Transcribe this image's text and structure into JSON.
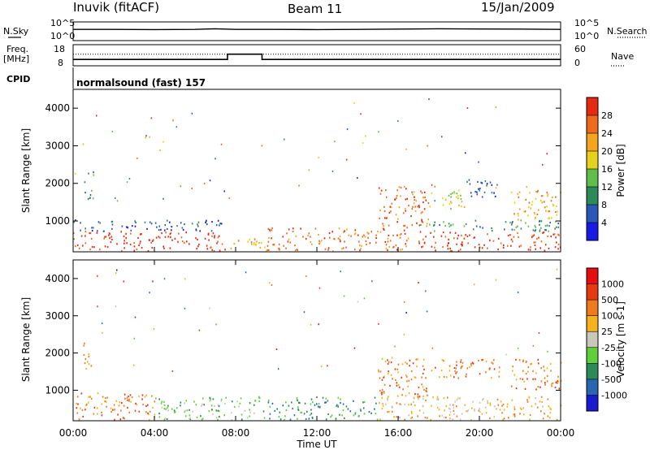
{
  "header": {
    "station": "Inuvik (fitACF)",
    "beam": "Beam 11",
    "date": "15/Jan/2009"
  },
  "nsky_panel": {
    "left_label": "N.Sky",
    "right_label": "N.Search",
    "left_ticks": [
      "10^5",
      "10^0"
    ],
    "right_ticks": [
      "10^5",
      "10^0"
    ]
  },
  "freq_panel": {
    "left_label_1": "Freq.",
    "left_label_2": "[MHz]",
    "cpid_label": "CPID",
    "right_label": "Nave",
    "left_ticks": [
      "18",
      "8"
    ],
    "right_ticks": [
      "60",
      "0"
    ]
  },
  "cpid_text": "normalsound (fast) 157",
  "xlabel": "Time UT",
  "x_ticks": [
    "00:00",
    "04:00",
    "08:00",
    "12:00",
    "16:00",
    "20:00",
    "00:00"
  ],
  "colors": {
    "power": [
      "#1a1ae6",
      "#2b58b8",
      "#2f8a5a",
      "#5fbf4a",
      "#e6d21e",
      "#f5a51e",
      "#f06a1e",
      "#e62a12"
    ],
    "velocity": [
      "#1a1ad0",
      "#2a66b0",
      "#2f8a5a",
      "#5fcf3a",
      "#c8c8b8",
      "#f5b21e",
      "#f07a1e",
      "#e63a12",
      "#e60e0e"
    ]
  },
  "chart_data": [
    {
      "type": "line",
      "title": "N.Sky / N.Search",
      "x_range": [
        "00:00",
        "24:00"
      ],
      "series": [
        {
          "name": "N.Sky",
          "style": "solid",
          "x": [
            0,
            2,
            4,
            6,
            7,
            8,
            10,
            12,
            14,
            16,
            18,
            20,
            22,
            24
          ],
          "values": [
            1000,
            1000,
            900,
            1000,
            1500,
            1000,
            1000,
            900,
            1000,
            1200,
            1500,
            1300,
            1200,
            1000
          ]
        },
        {
          "name": "N.Search",
          "style": "dotted",
          "x": [
            0,
            24
          ],
          "values": [
            1,
            1
          ]
        }
      ],
      "ylim": [
        1,
        100000
      ]
    },
    {
      "type": "line",
      "title": "Freq. / Nave",
      "x_range": [
        "00:00",
        "24:00"
      ],
      "series": [
        {
          "name": "Freq. [MHz]",
          "style": "solid",
          "x": [
            0,
            7.6,
            7.6,
            9.3,
            9.3,
            24
          ],
          "values": [
            11,
            11,
            13.5,
            13.5,
            11,
            11
          ]
        },
        {
          "name": "Nave",
          "style": "dotted",
          "x": [
            0,
            24
          ],
          "values": [
            33,
            33
          ]
        }
      ],
      "left_ylim": [
        8,
        18
      ],
      "right_ylim": [
        0,
        60
      ]
    },
    {
      "type": "heatmap",
      "title": "Power",
      "ylabel": "Slant Range [km]",
      "yticks": [
        1000,
        2000,
        3000,
        4000
      ],
      "ylim": [
        180,
        4500
      ],
      "colorbar_label": "Power [dB]",
      "colorbar_ticks": [
        "4",
        "8",
        "12",
        "16",
        "20",
        "24",
        "28"
      ],
      "regions": [
        {
          "t": [
            0.0,
            7.5
          ],
          "r": [
            180,
            700
          ],
          "level": 7
        },
        {
          "t": [
            0.0,
            7.5
          ],
          "r": [
            700,
            1000
          ],
          "level": 1
        },
        {
          "t": [
            7.5,
            9.5
          ],
          "r": [
            180,
            500
          ],
          "level": 5
        },
        {
          "t": [
            9.5,
            16.5
          ],
          "r": [
            180,
            800
          ],
          "level": 6
        },
        {
          "t": [
            15.0,
            17.5
          ],
          "r": [
            800,
            1900
          ],
          "level": 6
        },
        {
          "t": [
            17.5,
            19.3
          ],
          "r": [
            1300,
            1800
          ],
          "level": 4
        },
        {
          "t": [
            17.0,
            24.0
          ],
          "r": [
            180,
            700
          ],
          "level": 7
        },
        {
          "t": [
            17.0,
            24.0
          ],
          "r": [
            700,
            1000
          ],
          "level": 2
        },
        {
          "t": [
            19.3,
            21.0
          ],
          "r": [
            1600,
            2100
          ],
          "level": 1
        },
        {
          "t": [
            21.5,
            24.0
          ],
          "r": [
            1000,
            1800
          ],
          "level": 5
        },
        {
          "t": [
            0.5,
            1.0
          ],
          "r": [
            1500,
            2300
          ],
          "level": 2
        }
      ]
    },
    {
      "type": "heatmap",
      "title": "Velocity",
      "ylabel": "Slant Range [km]",
      "yticks": [
        1000,
        2000,
        3000,
        4000
      ],
      "ylim": [
        180,
        4500
      ],
      "colorbar_label": "Velocity [m s-1]",
      "colorbar_ticks": [
        "1000",
        "500",
        "100",
        "25",
        "-25",
        "-100",
        "-500",
        "-1000"
      ],
      "regions": [
        {
          "t": [
            0.0,
            4.0
          ],
          "r": [
            180,
            900
          ],
          "level": 6
        },
        {
          "t": [
            4.0,
            9.5
          ],
          "r": [
            180,
            800
          ],
          "level": 3
        },
        {
          "t": [
            9.5,
            15.0
          ],
          "r": [
            180,
            800
          ],
          "level": 2
        },
        {
          "t": [
            15.0,
            17.5
          ],
          "r": [
            800,
            1900
          ],
          "level": 6
        },
        {
          "t": [
            17.5,
            21.0
          ],
          "r": [
            1300,
            1800
          ],
          "level": 6
        },
        {
          "t": [
            15.0,
            24.0
          ],
          "r": [
            180,
            800
          ],
          "level": 5
        },
        {
          "t": [
            21.5,
            24.0
          ],
          "r": [
            1000,
            1800
          ],
          "level": 6
        },
        {
          "t": [
            0.5,
            1.0
          ],
          "r": [
            1500,
            2300
          ],
          "level": 6
        }
      ]
    }
  ]
}
